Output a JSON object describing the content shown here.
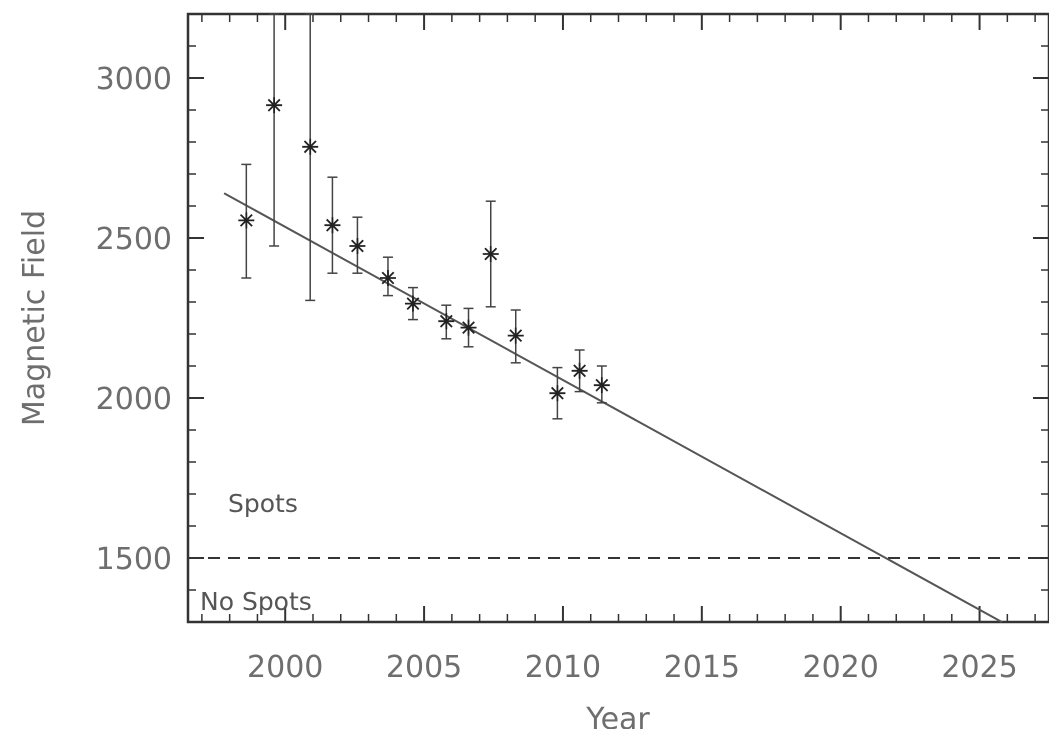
{
  "chart_data": {
    "type": "scatter",
    "title": "",
    "xlabel": "Year",
    "ylabel": "Magnetic Field",
    "xlim": [
      1996.5,
      2027.5
    ],
    "ylim": [
      1300,
      3200
    ],
    "x_ticks": [
      2000,
      2005,
      2010,
      2015,
      2020,
      2025
    ],
    "y_ticks": [
      1500,
      2000,
      2500,
      3000
    ],
    "x_tick_labels": [
      "2000",
      "2005",
      "2010",
      "2015",
      "2020",
      "2025"
    ],
    "y_tick_labels": [
      "1500",
      "2000",
      "2500",
      "3000"
    ],
    "grid": false,
    "legend": "none",
    "series": [
      {
        "marker": "asterisk",
        "points": [
          {
            "x": 1998.6,
            "y": 2555,
            "y_low": 2375,
            "y_high": 2730
          },
          {
            "x": 1999.6,
            "y": 2915,
            "y_low": 2475,
            "y_high": 3200
          },
          {
            "x": 2000.9,
            "y": 2785,
            "y_low": 2305,
            "y_high": 3200
          },
          {
            "x": 2001.7,
            "y": 2540,
            "y_low": 2390,
            "y_high": 2690
          },
          {
            "x": 2002.6,
            "y": 2475,
            "y_low": 2390,
            "y_high": 2565
          },
          {
            "x": 2003.7,
            "y": 2375,
            "y_low": 2320,
            "y_high": 2440
          },
          {
            "x": 2004.6,
            "y": 2295,
            "y_low": 2245,
            "y_high": 2345
          },
          {
            "x": 2005.8,
            "y": 2240,
            "y_low": 2185,
            "y_high": 2290
          },
          {
            "x": 2006.6,
            "y": 2220,
            "y_low": 2160,
            "y_high": 2280
          },
          {
            "x": 2007.4,
            "y": 2450,
            "y_low": 2285,
            "y_high": 2615
          },
          {
            "x": 2008.3,
            "y": 2195,
            "y_low": 2110,
            "y_high": 2275
          },
          {
            "x": 2009.8,
            "y": 2015,
            "y_low": 1935,
            "y_high": 2095
          },
          {
            "x": 2010.6,
            "y": 2085,
            "y_low": 2020,
            "y_high": 2150
          },
          {
            "x": 2011.4,
            "y": 2040,
            "y_low": 1985,
            "y_high": 2100
          }
        ]
      }
    ],
    "fit_line": {
      "x_start": 1997.8,
      "y_start": 2640,
      "x_end": 2025.8,
      "y_end": 1300
    },
    "threshold": {
      "y": 1500,
      "style": "dashed"
    },
    "annotations": {
      "above": "Spots",
      "below": "No Spots"
    }
  }
}
